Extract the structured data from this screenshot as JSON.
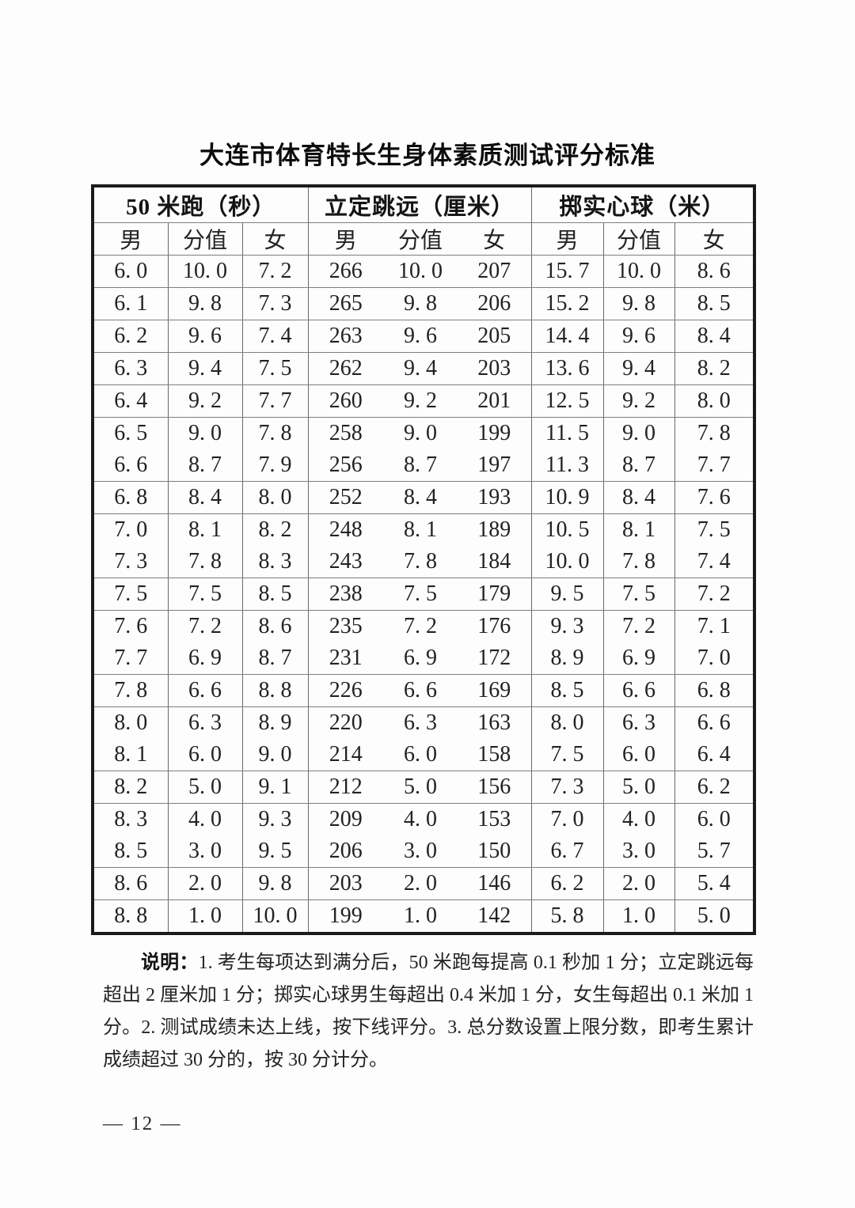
{
  "page": {
    "title": "大连市体育特长生身体素质测试评分标准",
    "page_number": "— 12 —"
  },
  "table": {
    "group_headers": [
      {
        "label": "50 米跑（秒）"
      },
      {
        "label": "立定跳远（厘米）"
      },
      {
        "label": "掷实心球（米）"
      }
    ],
    "sub_headers": [
      "男",
      "分值",
      "女",
      "男",
      "分值",
      "女",
      "男",
      "分值",
      "女"
    ],
    "rows": [
      [
        "6. 0",
        "10. 0",
        "7. 2",
        "266",
        "10. 0",
        "207",
        "15. 7",
        "10. 0",
        "8. 6"
      ],
      [
        "6. 1",
        "9. 8",
        "7. 3",
        "265",
        "9. 8",
        "206",
        "15. 2",
        "9. 8",
        "8. 5"
      ],
      [
        "6. 2",
        "9. 6",
        "7. 4",
        "263",
        "9. 6",
        "205",
        "14. 4",
        "9. 6",
        "8. 4"
      ],
      [
        "6. 3",
        "9. 4",
        "7. 5",
        "262",
        "9. 4",
        "203",
        "13. 6",
        "9. 4",
        "8. 2"
      ],
      [
        "6. 4",
        "9. 2",
        "7. 7",
        "260",
        "9. 2",
        "201",
        "12. 5",
        "9. 2",
        "8. 0"
      ],
      [
        "6. 5",
        "9. 0",
        "7. 8",
        "258",
        "9. 0",
        "199",
        "11. 5",
        "9. 0",
        "7. 8"
      ],
      [
        "6. 6",
        "8. 7",
        "7. 9",
        "256",
        "8. 7",
        "197",
        "11. 3",
        "8. 7",
        "7. 7"
      ],
      [
        "6. 8",
        "8. 4",
        "8. 0",
        "252",
        "8. 4",
        "193",
        "10. 9",
        "8. 4",
        "7. 6"
      ],
      [
        "7. 0",
        "8. 1",
        "8. 2",
        "248",
        "8. 1",
        "189",
        "10. 5",
        "8. 1",
        "7. 5"
      ],
      [
        "7. 3",
        "7. 8",
        "8. 3",
        "243",
        "7. 8",
        "184",
        "10. 0",
        "7. 8",
        "7. 4"
      ],
      [
        "7. 5",
        "7. 5",
        "8. 5",
        "238",
        "7. 5",
        "179",
        "9. 5",
        "7. 5",
        "7. 2"
      ],
      [
        "7. 6",
        "7. 2",
        "8. 6",
        "235",
        "7. 2",
        "176",
        "9. 3",
        "7. 2",
        "7. 1"
      ],
      [
        "7. 7",
        "6. 9",
        "8. 7",
        "231",
        "6. 9",
        "172",
        "8. 9",
        "6. 9",
        "7. 0"
      ],
      [
        "7. 8",
        "6. 6",
        "8. 8",
        "226",
        "6. 6",
        "169",
        "8. 5",
        "6. 6",
        "6. 8"
      ],
      [
        "8. 0",
        "6. 3",
        "8. 9",
        "220",
        "6. 3",
        "163",
        "8. 0",
        "6. 3",
        "6. 6"
      ],
      [
        "8. 1",
        "6. 0",
        "9. 0",
        "214",
        "6. 0",
        "158",
        "7. 5",
        "6. 0",
        "6. 4"
      ],
      [
        "8. 2",
        "5. 0",
        "9. 1",
        "212",
        "5. 0",
        "156",
        "7. 3",
        "5. 0",
        "6. 2"
      ],
      [
        "8. 3",
        "4. 0",
        "9. 3",
        "209",
        "4. 0",
        "153",
        "7. 0",
        "4. 0",
        "6. 0"
      ],
      [
        "8. 5",
        "3. 0",
        "9. 5",
        "206",
        "3. 0",
        "150",
        "6. 7",
        "3. 0",
        "5. 7"
      ],
      [
        "8. 6",
        "2. 0",
        "9. 8",
        "203",
        "2. 0",
        "146",
        "6. 2",
        "2. 0",
        "5. 4"
      ],
      [
        "8. 8",
        "1. 0",
        "10. 0",
        "199",
        "1. 0",
        "142",
        "5. 8",
        "1. 0",
        "5. 0"
      ]
    ],
    "no_separator_after_rows": [
      5,
      8,
      11,
      14,
      17
    ]
  },
  "note": {
    "label": "说明：",
    "text": "1. 考生每项达到满分后，50 米跑每提高 0.1 秒加 1 分；立定跳远每超出 2 厘米加 1 分；掷实心球男生每超出 0.4 米加 1 分，女生每超出 0.1 米加 1 分。2. 测试成绩未达上线，按下线评分。3. 总分数设置上限分数，即考生累计成绩超过 30 分的，按 30 分计分。"
  }
}
